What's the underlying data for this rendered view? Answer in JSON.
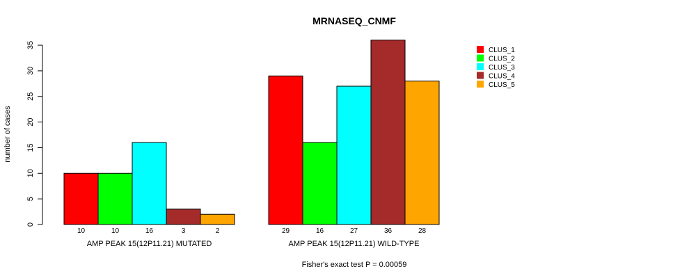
{
  "chart_data": {
    "type": "bar",
    "title": "MRNASEQ_CNMF",
    "ylabel": "number of cases",
    "xlabel": "",
    "ylim": [
      0,
      35
    ],
    "yticks": [
      0,
      5,
      10,
      15,
      20,
      25,
      30,
      35
    ],
    "groups": [
      "AMP PEAK 15(12P11.21) MUTATED",
      "AMP PEAK 15(12P11.21) WILD-TYPE"
    ],
    "series": [
      {
        "name": "CLUS_1",
        "color": "#ff0000",
        "values": [
          10,
          29
        ]
      },
      {
        "name": "CLUS_2",
        "color": "#00ff00",
        "values": [
          10,
          16
        ]
      },
      {
        "name": "CLUS_3",
        "color": "#00ffff",
        "values": [
          16,
          27
        ]
      },
      {
        "name": "CLUS_4",
        "color": "#a52a2a",
        "values": [
          3,
          36
        ]
      },
      {
        "name": "CLUS_5",
        "color": "#ffa500",
        "values": [
          2,
          28
        ]
      }
    ],
    "legend_position": "top-right",
    "footnote": "Fisher's exact test P = 0.00059"
  }
}
